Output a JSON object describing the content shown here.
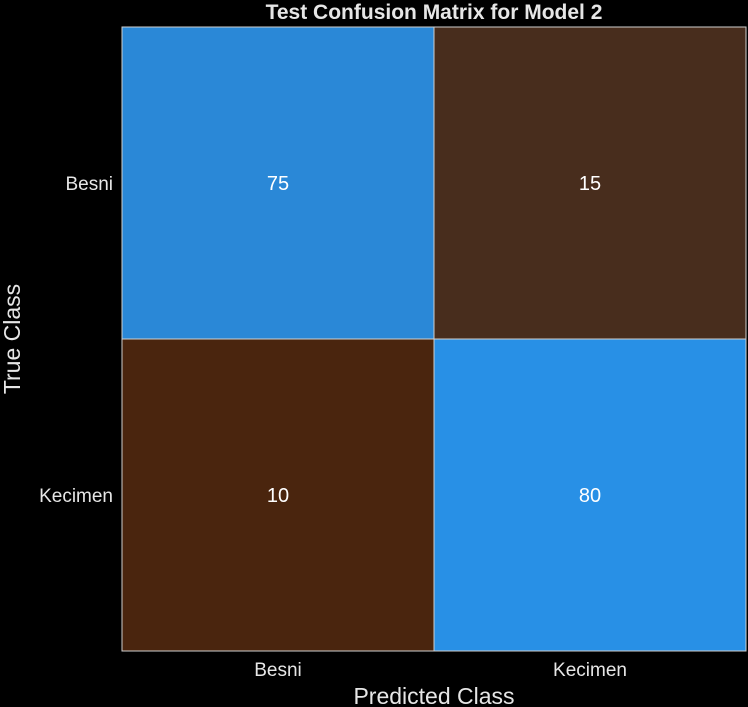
{
  "chart_data": {
    "type": "heatmap",
    "title": "Test Confusion Matrix for Model 2",
    "xlabel": "Predicted Class",
    "ylabel": "True Class",
    "x_categories": [
      "Besni",
      "Kecimen"
    ],
    "y_categories": [
      "Besni",
      "Kecimen"
    ],
    "values": [
      [
        75,
        15
      ],
      [
        10,
        80
      ]
    ],
    "value_range": [
      10,
      80
    ],
    "colormap": {
      "low": "#4a250e",
      "high": "#2890e6"
    },
    "text_color": "#ffffff",
    "label_color": "#e6e6e6",
    "gridline_color": "#cfcfcf",
    "background": "#000000"
  }
}
